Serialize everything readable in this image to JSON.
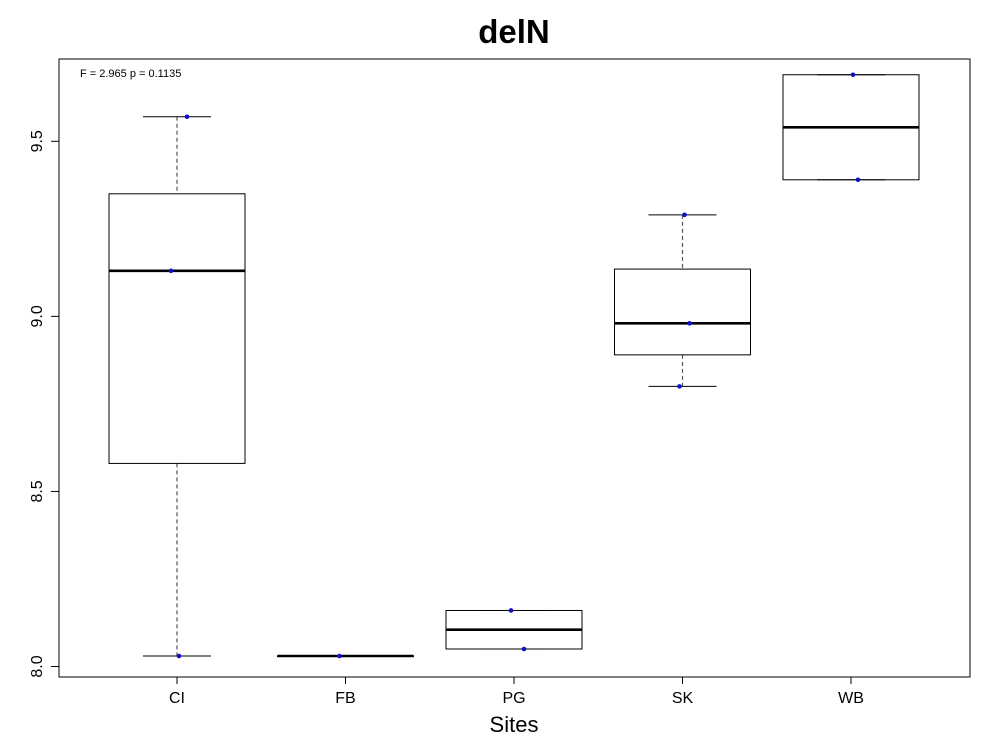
{
  "chart_data": {
    "type": "box",
    "title": "delN",
    "xlabel": "Sites",
    "ylabel": "",
    "annotation": "F = 2.965 p = 0.1135",
    "ylim": [
      7.97,
      9.735
    ],
    "yticks": [
      8.0,
      8.5,
      9.0,
      9.5
    ],
    "ytick_labels": [
      "8.0",
      "8.5",
      "9.0",
      "9.5"
    ],
    "categories": [
      "CI",
      "FB",
      "PG",
      "SK",
      "WB"
    ],
    "boxes": [
      {
        "category": "CI",
        "whisker_low": 8.03,
        "q1": 8.58,
        "median": 9.13,
        "q3": 9.35,
        "whisker_high": 9.57,
        "points": [
          8.03,
          9.13,
          9.57
        ]
      },
      {
        "category": "FB",
        "whisker_low": 8.03,
        "q1": 8.03,
        "median": 8.03,
        "q3": 8.03,
        "whisker_high": 8.03,
        "points": [
          8.03
        ]
      },
      {
        "category": "PG",
        "whisker_low": 8.05,
        "q1": 8.05,
        "median": 8.105,
        "q3": 8.16,
        "whisker_high": 8.16,
        "points": [
          8.05,
          8.16
        ]
      },
      {
        "category": "SK",
        "whisker_low": 8.8,
        "q1": 8.89,
        "median": 8.98,
        "q3": 9.135,
        "whisker_high": 9.29,
        "points": [
          8.8,
          8.98,
          9.29
        ]
      },
      {
        "category": "WB",
        "whisker_low": 9.39,
        "q1": 9.39,
        "median": 9.54,
        "q3": 9.69,
        "whisker_high": 9.69,
        "points": [
          9.39,
          9.69
        ]
      }
    ],
    "colors": {
      "points": "#1010c8",
      "box": "#000000",
      "whisker": "#555555"
    },
    "grid": false
  }
}
